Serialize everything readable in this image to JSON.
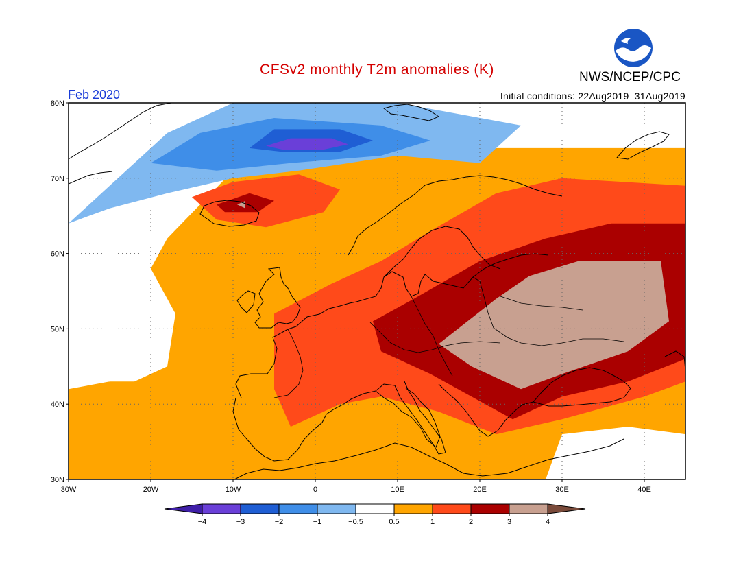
{
  "header": {
    "title": "CFSv2 monthly T2m anomalies (K)",
    "agency": "NWS/NCEP/CPC",
    "logo_text": "NOAA",
    "month": "Feb 2020",
    "initial_conditions": "Initial conditions: 22Aug2019–31Aug2019"
  },
  "map": {
    "lon_range": [
      -30,
      45
    ],
    "lat_range": [
      30,
      80
    ],
    "lon_ticks": [
      {
        "value": -30,
        "label": "30W"
      },
      {
        "value": -20,
        "label": "20W"
      },
      {
        "value": -10,
        "label": "10W"
      },
      {
        "value": 0,
        "label": "0"
      },
      {
        "value": 10,
        "label": "10E"
      },
      {
        "value": 20,
        "label": "20E"
      },
      {
        "value": 30,
        "label": "30E"
      },
      {
        "value": 40,
        "label": "40E"
      }
    ],
    "lat_ticks": [
      {
        "value": 30,
        "label": "30N"
      },
      {
        "value": 40,
        "label": "40N"
      },
      {
        "value": 50,
        "label": "50N"
      },
      {
        "value": 60,
        "label": "60N"
      },
      {
        "value": 70,
        "label": "70N"
      },
      {
        "value": 80,
        "label": "80N"
      }
    ],
    "grid": "dotted"
  },
  "legend": {
    "colors": [
      "#3f1fa8",
      "#6a3fd8",
      "#1f5ed4",
      "#3f8ee8",
      "#7fb8f0",
      "#ffffff",
      "#ffa500",
      "#ff4a1a",
      "#aa0000",
      "#c8a090",
      "#7a4a3a"
    ],
    "labels": [
      "−4",
      "−3",
      "−2",
      "−1",
      "−0.5",
      "0.5",
      "1",
      "2",
      "3",
      "4"
    ]
  },
  "anomaly_regions": [
    {
      "level": 0.5,
      "color": "#ffa500",
      "poly": [
        [
          -30,
          30
        ],
        [
          45,
          30
        ],
        [
          45,
          74
        ],
        [
          10,
          74
        ],
        [
          -10,
          71
        ],
        [
          -18,
          62
        ],
        [
          -22,
          54
        ],
        [
          -20,
          44
        ],
        [
          -30,
          42
        ]
      ]
    },
    {
      "level": -1,
      "color": "#7fb8f0",
      "poly": [
        [
          -30,
          64
        ],
        [
          -25,
          69
        ],
        [
          -18,
          76
        ],
        [
          -10,
          80
        ],
        [
          10,
          80
        ],
        [
          25,
          77
        ],
        [
          20,
          72
        ],
        [
          10,
          73
        ],
        [
          -2,
          71
        ],
        [
          -10,
          70
        ],
        [
          -18,
          68
        ],
        [
          -25,
          66
        ]
      ]
    },
    {
      "level": -2,
      "color": "#3f8ee8",
      "poly": [
        [
          -20,
          72
        ],
        [
          -14,
          76
        ],
        [
          -5,
          78
        ],
        [
          8,
          77
        ],
        [
          14,
          75
        ],
        [
          8,
          73
        ],
        [
          -3,
          72
        ],
        [
          -12,
          71
        ]
      ]
    },
    {
      "level": -3,
      "color": "#1f5ed4",
      "poly": [
        [
          -8,
          74
        ],
        [
          -5,
          76.5
        ],
        [
          3,
          76.5
        ],
        [
          7,
          75
        ],
        [
          3,
          73.5
        ],
        [
          -4,
          73.5
        ]
      ]
    },
    {
      "level": -4,
      "color": "#6a3fd8",
      "poly": [
        [
          -6,
          74.3
        ],
        [
          -3,
          75.3
        ],
        [
          2,
          75.3
        ],
        [
          4,
          74.5
        ],
        [
          1,
          73.8
        ],
        [
          -4,
          73.8
        ]
      ]
    },
    {
      "level": 2,
      "color": "#ff4a1a",
      "poly": [
        [
          -15,
          67.5
        ],
        [
          -10,
          69.5
        ],
        [
          -2,
          70.5
        ],
        [
          3,
          68.5
        ],
        [
          1,
          65.5
        ],
        [
          -6,
          63.5
        ],
        [
          -12,
          64.5
        ]
      ]
    },
    {
      "level": 3,
      "color": "#aa0000",
      "poly": [
        [
          -12,
          66.5
        ],
        [
          -8,
          68
        ],
        [
          -5,
          67
        ],
        [
          -7,
          65.5
        ],
        [
          -11,
          65.5
        ]
      ]
    },
    {
      "level": 4,
      "color": "#c8a090",
      "poly": [
        [
          -9.5,
          66.5
        ],
        [
          -8.5,
          67
        ],
        [
          -8.5,
          66
        ]
      ]
    },
    {
      "level": 2,
      "color": "#ff4a1a",
      "poly": [
        [
          -5,
          52
        ],
        [
          2,
          56
        ],
        [
          8,
          59
        ],
        [
          14,
          63
        ],
        [
          22,
          68
        ],
        [
          30,
          70
        ],
        [
          45,
          69
        ],
        [
          45,
          43
        ],
        [
          40,
          41
        ],
        [
          30,
          38
        ],
        [
          22,
          36
        ],
        [
          15,
          39
        ],
        [
          8,
          41
        ],
        [
          3,
          40
        ],
        [
          -3,
          37
        ],
        [
          -5,
          42
        ],
        [
          -5,
          48
        ]
      ]
    },
    {
      "level": 3,
      "color": "#aa0000",
      "poly": [
        [
          7,
          51
        ],
        [
          12,
          54
        ],
        [
          20,
          59
        ],
        [
          28,
          62
        ],
        [
          36,
          64
        ],
        [
          45,
          64
        ],
        [
          45,
          46
        ],
        [
          38,
          43
        ],
        [
          30,
          41
        ],
        [
          24,
          38
        ],
        [
          19,
          41
        ],
        [
          14,
          44
        ],
        [
          8,
          47
        ]
      ]
    },
    {
      "level": 4,
      "color": "#c8a090",
      "poly": [
        [
          15,
          48
        ],
        [
          22,
          54
        ],
        [
          26,
          57
        ],
        [
          32,
          59
        ],
        [
          42,
          59
        ],
        [
          43,
          51
        ],
        [
          38,
          47
        ],
        [
          30,
          44
        ],
        [
          25,
          42
        ],
        [
          19,
          45
        ]
      ]
    },
    {
      "level": 0.5,
      "color": "#ffffff",
      "poly": [
        [
          -30,
          43
        ],
        [
          -22,
          43
        ],
        [
          -18,
          45
        ],
        [
          -17,
          52
        ],
        [
          -20,
          58
        ],
        [
          -22,
          62
        ],
        [
          -30,
          62
        ]
      ]
    },
    {
      "level": 0.5,
      "color": "#ffffff",
      "poly": [
        [
          28,
          30
        ],
        [
          45,
          30
        ],
        [
          45,
          36
        ],
        [
          38,
          37
        ],
        [
          30,
          36
        ]
      ]
    }
  ]
}
